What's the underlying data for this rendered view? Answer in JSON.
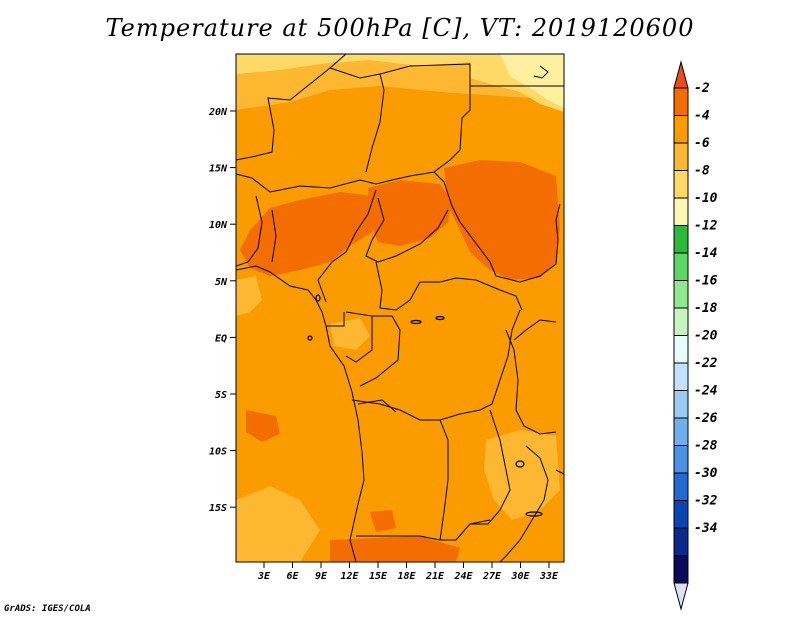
{
  "title": "Temperature at 500hPa [C], VT: 2019120600",
  "credit": "GrADS: IGES/COLA",
  "map": {
    "lat_labels": [
      "20N",
      "15N",
      "10N",
      "5N",
      "EQ",
      "5S",
      "10S",
      "15S"
    ],
    "lon_labels": [
      "3E",
      "6E",
      "9E",
      "12E",
      "15E",
      "18E",
      "21E",
      "24E",
      "27E",
      "30E",
      "33E"
    ],
    "field_colors": {
      "warm": "#f46d00",
      "mid": "#fa9b00",
      "cool": "#fdb731",
      "cooler": "#ffd966",
      "coolest": "#fff0a0"
    }
  },
  "colorbar": {
    "labels": [
      "-2",
      "-4",
      "-6",
      "-8",
      "-10",
      "-12",
      "-14",
      "-16",
      "-18",
      "-20",
      "-22",
      "-24",
      "-26",
      "-28",
      "-30",
      "-32",
      "-34"
    ],
    "colors": [
      "#f04a1a",
      "#f46d00",
      "#fa9b00",
      "#fdb731",
      "#ffd966",
      "#fff5b4",
      "#2fb93a",
      "#5dd665",
      "#92e88f",
      "#c6f5c2",
      "#e8fbfd",
      "#c3e1fb",
      "#9bcaf3",
      "#6fb0ec",
      "#4a90e4",
      "#2468d3",
      "#0c44b4",
      "#092a8a",
      "#0a0a5a",
      "#e0e0f4"
    ]
  }
}
